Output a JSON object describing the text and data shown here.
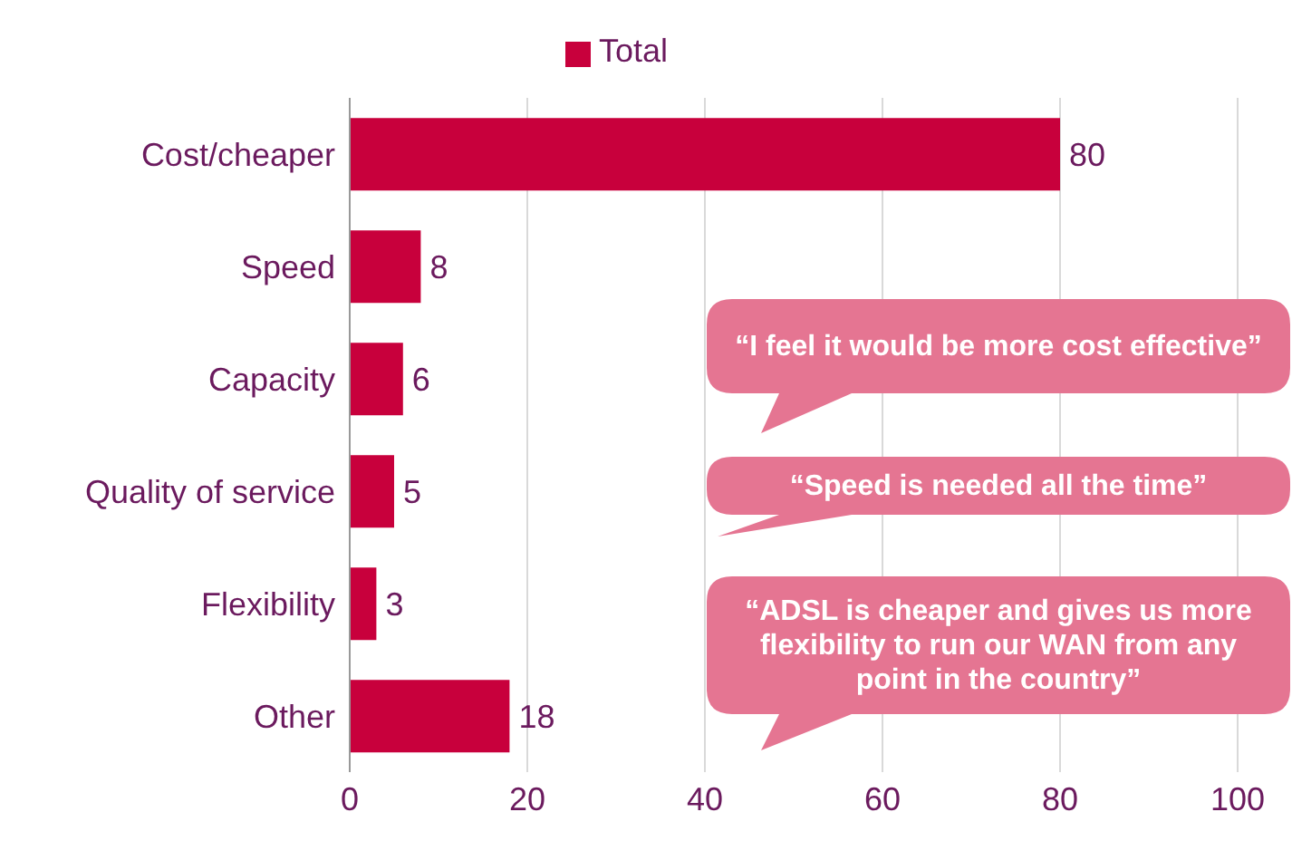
{
  "chart_data": {
    "type": "bar",
    "orientation": "horizontal",
    "categories": [
      "Cost/cheaper",
      "Speed",
      "Capacity",
      "Quality of service",
      "Flexibility",
      "Other"
    ],
    "series": [
      {
        "name": "Total",
        "color": "#c8003c",
        "values": [
          80,
          8,
          6,
          5,
          3,
          18
        ]
      }
    ],
    "xlim": [
      0,
      100
    ],
    "xticks": [
      0,
      20,
      40,
      60,
      80,
      100
    ],
    "grid": "x",
    "legend": "top",
    "data_labels": true,
    "annotations": [
      "“I feel it would be more cost effective”",
      "“Speed is needed all the time”",
      "“ADSL is cheaper and gives us more flexibility to run our WAN from any point in the country”"
    ]
  }
}
